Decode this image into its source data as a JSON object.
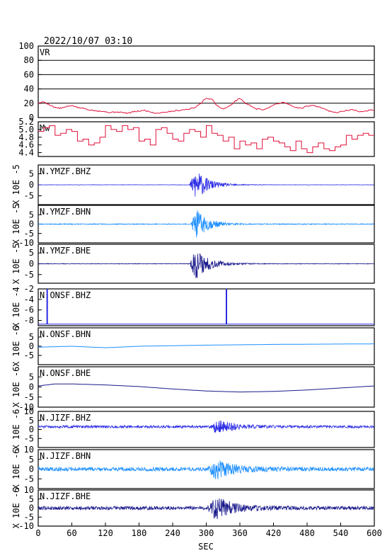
{
  "header": {
    "timestamp": "2022/10/07 03:10"
  },
  "chart_data": {
    "type": "line",
    "xlabel": "SEC",
    "xlim": [
      0,
      600
    ],
    "xticks": [
      0,
      60,
      120,
      180,
      240,
      300,
      360,
      420,
      480,
      540,
      600
    ],
    "colors": {
      "red": "#e0103a",
      "navy": "#1a1a8c",
      "blue": "#2a2ae6",
      "sky": "#1e90ff",
      "frame": "#000000"
    },
    "panels": [
      {
        "label": "VR",
        "kind": "vr",
        "ylim": [
          0,
          100
        ],
        "yticks": [
          "100",
          "80",
          "60",
          "40",
          "20"
        ],
        "color": "red",
        "series": {
          "x": [
            0,
            10,
            20,
            30,
            40,
            50,
            60,
            70,
            80,
            90,
            100,
            110,
            120,
            130,
            140,
            150,
            160,
            170,
            180,
            190,
            200,
            210,
            220,
            230,
            240,
            250,
            260,
            270,
            280,
            290,
            300,
            310,
            320,
            330,
            340,
            350,
            360,
            370,
            380,
            390,
            400,
            410,
            420,
            430,
            440,
            450,
            460,
            470,
            480,
            490,
            500,
            510,
            520,
            530,
            540,
            550,
            560,
            570,
            580,
            590,
            600
          ],
          "y": [
            20,
            22,
            18,
            14,
            13,
            15,
            17,
            14,
            13,
            11,
            10,
            9,
            8,
            7,
            8,
            7,
            6,
            8,
            9,
            10,
            8,
            6,
            7,
            8,
            9,
            10,
            11,
            12,
            14,
            20,
            27,
            26,
            16,
            12,
            15,
            22,
            27,
            20,
            16,
            12,
            11,
            13,
            18,
            20,
            21,
            17,
            14,
            13,
            16,
            17,
            15,
            13,
            9,
            7,
            8,
            10,
            11,
            9,
            8,
            10,
            11
          ]
        }
      },
      {
        "label": "Mw",
        "kind": "mw",
        "ylim": [
          4.3,
          5.2
        ],
        "yticks": [
          "5.2",
          "5.0",
          "4.8",
          "4.6",
          "4.4"
        ],
        "color": "red",
        "series": {
          "x": [
            0,
            10,
            20,
            30,
            40,
            50,
            60,
            70,
            80,
            90,
            100,
            110,
            120,
            130,
            140,
            150,
            160,
            170,
            180,
            190,
            200,
            210,
            220,
            230,
            240,
            250,
            260,
            270,
            280,
            290,
            300,
            310,
            320,
            330,
            340,
            350,
            360,
            370,
            380,
            390,
            400,
            410,
            420,
            430,
            440,
            450,
            460,
            470,
            480,
            490,
            500,
            510,
            520,
            530,
            540,
            550,
            560,
            570,
            580,
            590,
            600
          ],
          "y": [
            4.95,
            5.05,
            5.1,
            4.85,
            4.9,
            5.0,
            4.95,
            4.7,
            4.75,
            4.6,
            4.65,
            4.8,
            5.1,
            5.0,
            4.95,
            5.1,
            5.0,
            5.05,
            4.7,
            4.75,
            4.6,
            5.0,
            5.05,
            4.9,
            4.75,
            4.7,
            4.9,
            5.0,
            4.95,
            4.8,
            5.1,
            4.9,
            4.85,
            4.7,
            4.8,
            4.5,
            4.7,
            4.6,
            4.65,
            4.5,
            4.75,
            4.8,
            4.7,
            4.65,
            4.55,
            4.45,
            4.7,
            4.5,
            4.4,
            4.55,
            4.65,
            4.5,
            4.45,
            4.55,
            4.6,
            4.85,
            4.75,
            4.85,
            4.9,
            4.85,
            4.85
          ]
        }
      },
      {
        "label": "N.YMZF.BHZ",
        "kind": "wave",
        "ylim": [
          -9,
          9
        ],
        "yticks": [
          "5",
          "0",
          "-5"
        ],
        "scale": "X 10E -5",
        "color": "blue",
        "event": [
          270,
          340
        ],
        "amp": 7.5,
        "noise": 0.08,
        "seed": 11
      },
      {
        "label": "N.YMZF.BHN",
        "kind": "wave",
        "ylim": [
          -10,
          10
        ],
        "yticks": [
          "5",
          "0",
          "-5",
          "-10"
        ],
        "scale": "X 10E -5",
        "color": "sky",
        "event": [
          272,
          340
        ],
        "amp": 8,
        "noise": 0.25,
        "seed": 23
      },
      {
        "label": "N.YMZF.BHE",
        "kind": "wave",
        "ylim": [
          -9,
          9
        ],
        "yticks": [
          "5",
          "0",
          "-5"
        ],
        "scale": "X 10E -5",
        "color": "navy",
        "event": [
          270,
          345
        ],
        "amp": 7.5,
        "noise": 0.15,
        "seed": 37
      },
      {
        "label": "N.ONSF.BHZ",
        "kind": "onsf_z",
        "ylim": [
          -9,
          -2
        ],
        "yticks": [
          "-2",
          "-4",
          "-6",
          "-8"
        ],
        "scale": "X 10E -4",
        "color": "blue",
        "spikes": [
          16,
          336
        ]
      },
      {
        "label": "N.ONSF.BHN",
        "kind": "drift",
        "ylim": [
          -10,
          10
        ],
        "yticks": [
          "5",
          "0",
          "-5"
        ],
        "scale": "X 10E -6",
        "color": "sky",
        "series": {
          "x": [
            0,
            60,
            120,
            180,
            240,
            300,
            360,
            420,
            480,
            540,
            600
          ],
          "y": [
            -0.5,
            0.0,
            -0.8,
            0.0,
            0.3,
            0.6,
            0.8,
            1.0,
            1.1,
            1.2,
            1.3
          ]
        }
      },
      {
        "label": "N.ONSF.BHE",
        "kind": "drift",
        "ylim": [
          -10,
          10
        ],
        "yticks": [
          "5",
          "0",
          "-5",
          "-10"
        ],
        "scale": "X 10E -6",
        "color": "navy",
        "series": {
          "x": [
            0,
            30,
            60,
            120,
            180,
            240,
            300,
            360,
            420,
            480,
            540,
            600
          ],
          "y": [
            0.5,
            1.5,
            1.5,
            1.0,
            0.2,
            -1.0,
            -2.0,
            -2.5,
            -2.2,
            -1.5,
            -0.5,
            0.5
          ]
        }
      },
      {
        "label": "N.JIZF.BHZ",
        "kind": "wave",
        "ylim": [
          -10,
          10
        ],
        "yticks": [
          "10",
          "5",
          "0",
          "-5"
        ],
        "scale": "X 10E -6",
        "color": "blue",
        "event": [
          305,
          400
        ],
        "amp": 4,
        "noise": 0.7,
        "seed": 51,
        "offset": 1.5
      },
      {
        "label": "N.JIZF.BHN",
        "kind": "wave",
        "ylim": [
          -10,
          10
        ],
        "yticks": [
          "10",
          "5",
          "0",
          "-5"
        ],
        "scale": "X 10E -6",
        "color": "sky",
        "event": [
          300,
          420
        ],
        "amp": 4.5,
        "noise": 1.0,
        "seed": 63,
        "offset": 0
      },
      {
        "label": "N.JIZF.BHE",
        "kind": "wave",
        "ylim": [
          -10,
          10
        ],
        "yticks": [
          "10",
          "5",
          "0",
          "-5",
          "-10"
        ],
        "scale": "X 10E -6",
        "color": "navy",
        "event": [
          300,
          410
        ],
        "amp": 6,
        "noise": 1.0,
        "seed": 79,
        "offset": 0
      }
    ]
  }
}
